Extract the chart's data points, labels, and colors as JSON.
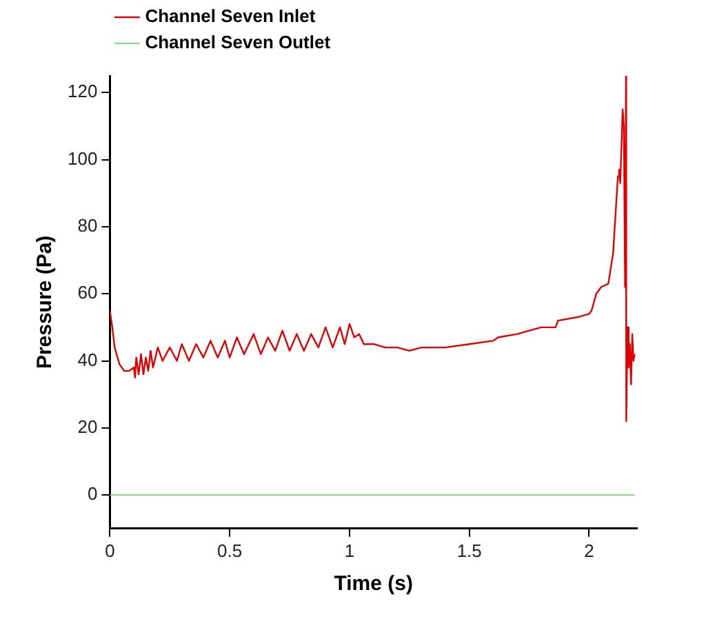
{
  "chart_data": {
    "type": "line",
    "xlabel": "Time (s)",
    "ylabel": "Pressure (Pa)",
    "xlim": [
      0,
      2.2
    ],
    "ylim": [
      -10,
      125
    ],
    "xticks": [
      0,
      0.5,
      1,
      1.5,
      2
    ],
    "yticks": [
      0,
      20,
      40,
      60,
      80,
      100,
      120
    ],
    "grid": false,
    "legend": "top left",
    "marker": "none",
    "line_style": "solid",
    "series": [
      {
        "name": "Channel Seven Inlet",
        "color": "#e00000",
        "x": [
          0,
          0.01,
          0.02,
          0.04,
          0.06,
          0.08,
          0.1,
          0.105,
          0.11,
          0.12,
          0.13,
          0.14,
          0.15,
          0.16,
          0.17,
          0.18,
          0.2,
          0.22,
          0.25,
          0.28,
          0.3,
          0.33,
          0.36,
          0.39,
          0.42,
          0.45,
          0.48,
          0.5,
          0.53,
          0.56,
          0.6,
          0.63,
          0.66,
          0.69,
          0.72,
          0.75,
          0.78,
          0.81,
          0.84,
          0.87,
          0.9,
          0.93,
          0.96,
          0.98,
          1.0,
          1.02,
          1.04,
          1.06,
          1.1,
          1.15,
          1.2,
          1.25,
          1.3,
          1.4,
          1.5,
          1.6,
          1.62,
          1.7,
          1.8,
          1.86,
          1.87,
          1.95,
          2.0,
          2.01,
          2.03,
          2.05,
          2.08,
          2.1,
          2.12,
          2.125,
          2.13,
          2.14,
          2.145,
          2.15,
          2.154,
          2.155,
          2.16,
          2.165,
          2.17,
          2.175,
          2.18,
          2.185,
          2.19
        ],
        "values": [
          55,
          50,
          44,
          39,
          37,
          37,
          38,
          35,
          41,
          36,
          42,
          36,
          41,
          37,
          43,
          38,
          44,
          40,
          44,
          40,
          45,
          40,
          45,
          41,
          46,
          41,
          46,
          41,
          47,
          42,
          48,
          42,
          47,
          43,
          49,
          43,
          48,
          43,
          48,
          44,
          50,
          44,
          50,
          45,
          51,
          47,
          48,
          45,
          45,
          44,
          44,
          43,
          44,
          44,
          45,
          46,
          47,
          48,
          50,
          50,
          52,
          53,
          54,
          55,
          60,
          62,
          63,
          72,
          95,
          97,
          93,
          115,
          110,
          62,
          125,
          22,
          50,
          38,
          45,
          33,
          48,
          40,
          42
        ]
      },
      {
        "name": "Channel Seven Outlet",
        "color": "#90d890",
        "x": [
          0,
          2.19
        ],
        "values": [
          0,
          0
        ]
      }
    ]
  }
}
